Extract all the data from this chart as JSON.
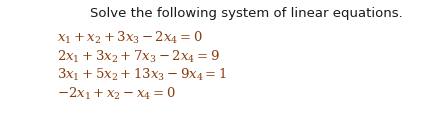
{
  "title": "Solve the following system of linear equations.",
  "title_fontsize": 9.5,
  "title_color": "#1a1a1a",
  "equations": [
    "$x_1 + x_2 + 3x_3 - 2x_4 = 0$",
    "$2x_1 + 3x_2 + 7x_3 - 2x_4 = 9$",
    "$3x_1 + 5x_2 + 13x_3 - 9x_4 = 1$",
    "$-2x_1 + x_2 - x_4 = 0$"
  ],
  "eq_fontsize": 9.5,
  "eq_color": "#8B3A0A",
  "background_color": "#ffffff",
  "fig_width": 4.25,
  "fig_height": 1.21,
  "dpi": 100
}
